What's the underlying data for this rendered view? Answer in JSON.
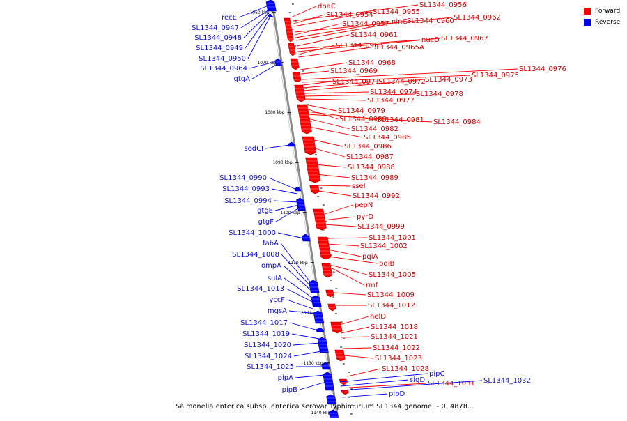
{
  "caption": "Salmonella enterica subsp. enterica serovar Typhimurium SL1344 genome. - 0..4878...",
  "legend": [
    {
      "label": "Forward",
      "color": "#ff0000"
    },
    {
      "label": "Reverse",
      "color": "#0000ff"
    }
  ],
  "colors": {
    "forward": "#ff0000",
    "reverse": "#0000ff",
    "backbone": "#888888"
  },
  "ticks": [
    {
      "label": "1060 kbp",
      "kbp": 1060
    },
    {
      "label": "1070 kbp",
      "kbp": 1070
    },
    {
      "label": "1080 kbp",
      "kbp": 1080
    },
    {
      "label": "1090 kbp",
      "kbp": 1090
    },
    {
      "label": "1100 kbp",
      "kbp": 1100
    },
    {
      "label": "1110 kbp",
      "kbp": 1110
    },
    {
      "label": "1120 kbp",
      "kbp": 1120
    },
    {
      "label": "1130 kbp",
      "kbp": 1130
    },
    {
      "label": "1140 kbp",
      "kbp": 1140
    }
  ],
  "forward_labels": [
    "dnaC",
    "SL1344_0956",
    "SL1344_0954",
    "SL1344_0955",
    "SL1344_0962",
    "SL1344_0957",
    "ninG",
    "SL1344_0960",
    "SL1344_0961",
    "nucD",
    "SL1344_0967",
    "SL1344_0963",
    "SL1344_0965A",
    "SL1344_0968",
    "SL1344_0969",
    "SL1344_0976",
    "SL1344_0975",
    "SL1344_0971",
    "SL1344_0972",
    "SL1344_0973",
    "SL1344_0974",
    "SL1344_0978",
    "SL1344_0977",
    "SL1344_0979",
    "SL1344_0980",
    "SL1344_0981",
    "SL1344_0984",
    "SL1344_0982",
    "SL1344_0985",
    "SL1344_0986",
    "SL1344_0987",
    "SL1344_0988",
    "SL1344_0989",
    "sseI",
    "SL1344_0992",
    "pepN",
    "pyrD",
    "SL1344_0999",
    "SL1344_1001",
    "SL1344_1002",
    "pqiA",
    "pqiB",
    "SL1344_1005",
    "rmf",
    "SL1344_1009",
    "SL1344_1012",
    "helD",
    "SL1344_1018",
    "SL1344_1021",
    "SL1344_1022",
    "SL1344_1023",
    "SL1344_1028",
    "SL1344_1031"
  ],
  "reverse_labels": [
    "recE",
    "SL1344_0947",
    "SL1344_0948",
    "SL1344_0949",
    "SL1344_0950",
    "SL1344_0964",
    "gtgA",
    "sodCI",
    "SL1344_0990",
    "SL1344_0993",
    "SL1344_0994",
    "gtgE",
    "gtgF",
    "SL1344_1000",
    "fabA",
    "SL1344_1008",
    "ompA",
    "sulA",
    "SL1344_1013",
    "yccF",
    "mgsA",
    "SL1344_1017",
    "SL1344_1019",
    "SL1344_1020",
    "SL1344_1024",
    "SL1344_1025",
    "pipA",
    "pipB",
    "pipC",
    "sigD",
    "SL1344_1032",
    "pipD"
  ]
}
